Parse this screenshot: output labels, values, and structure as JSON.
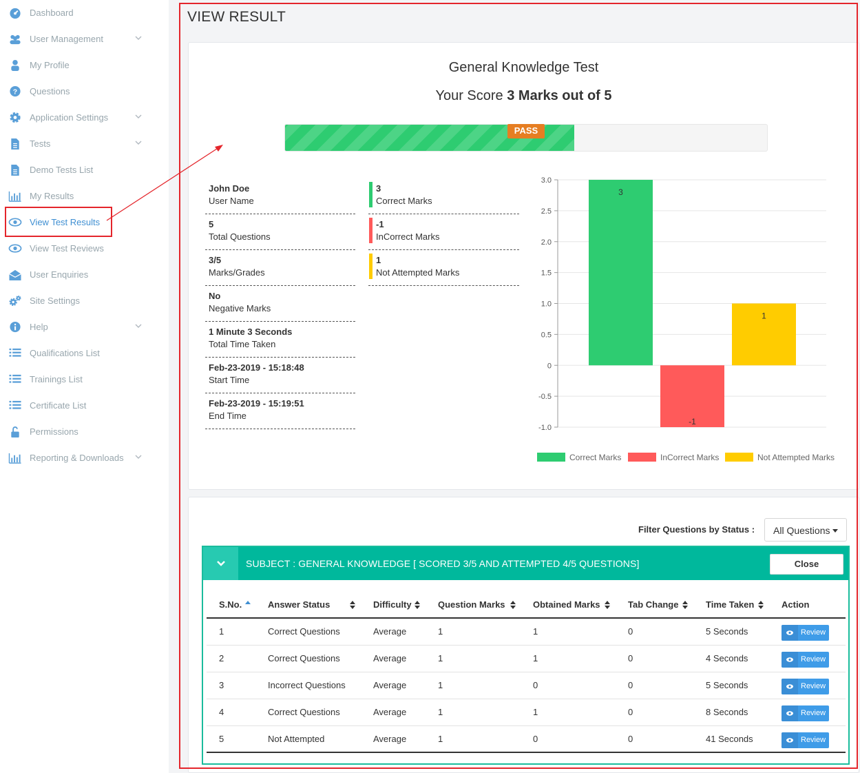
{
  "sidebar": {
    "items": [
      {
        "label": "Dashboard",
        "icon": "dashboard-icon",
        "has_chevron": false
      },
      {
        "label": "User Management",
        "icon": "users-icon",
        "has_chevron": true
      },
      {
        "label": "My Profile",
        "icon": "user-icon",
        "has_chevron": false
      },
      {
        "label": "Questions",
        "icon": "question-circle-icon",
        "has_chevron": false
      },
      {
        "label": "Application Settings",
        "icon": "gear-icon",
        "has_chevron": true
      },
      {
        "label": "Tests",
        "icon": "file-text-icon",
        "has_chevron": true
      },
      {
        "label": "Demo Tests List",
        "icon": "file-text-icon",
        "has_chevron": false
      },
      {
        "label": "My Results",
        "icon": "bar-chart-icon",
        "has_chevron": false
      },
      {
        "label": "View Test Results",
        "icon": "eye-icon",
        "has_chevron": false,
        "active": true
      },
      {
        "label": "View Test Reviews",
        "icon": "eye-icon",
        "has_chevron": false
      },
      {
        "label": "User Enquiries",
        "icon": "envelope-open-icon",
        "has_chevron": false
      },
      {
        "label": "Site Settings",
        "icon": "gears-icon",
        "has_chevron": false
      },
      {
        "label": "Help",
        "icon": "info-circle-icon",
        "has_chevron": true
      },
      {
        "label": "Qualifications List",
        "icon": "list-icon",
        "has_chevron": false
      },
      {
        "label": "Trainings List",
        "icon": "list-icon",
        "has_chevron": false
      },
      {
        "label": "Certificate List",
        "icon": "list-icon",
        "has_chevron": false
      },
      {
        "label": "Permissions",
        "icon": "unlock-icon",
        "has_chevron": false
      },
      {
        "label": "Reporting & Downloads",
        "icon": "bar-chart-icon",
        "has_chevron": true
      }
    ]
  },
  "page": {
    "title": "VIEW RESULT"
  },
  "result": {
    "test_name": "General Knowledge Test",
    "score_prefix": "Your Score",
    "score_bold": "3 Marks out of 5",
    "pass_label": "PASS",
    "progress_fraction": 0.6,
    "info": [
      {
        "value": "John Doe",
        "label": "User Name"
      },
      {
        "value": "5",
        "label": "Total Questions"
      },
      {
        "value": "3/5",
        "label": "Marks/Grades"
      },
      {
        "value": "No",
        "label": "Negative Marks"
      },
      {
        "value": "1 Minute 3 Seconds",
        "label": "Total Time Taken"
      },
      {
        "value": "Feb-23-2019 - 15:18:48",
        "label": "Start Time"
      },
      {
        "value": "Feb-23-2019 - 15:19:51",
        "label": "End Time"
      }
    ],
    "marks": [
      {
        "value": "3",
        "label": "Correct Marks",
        "color": "#2ecc71"
      },
      {
        "value": "-1",
        "label": "InCorrect Marks",
        "color": "#ff5a5a"
      },
      {
        "value": "1",
        "label": "Not Attempted Marks",
        "color": "#ffcc00"
      }
    ]
  },
  "chart_data": {
    "type": "bar",
    "categories": [
      "Correct Marks",
      "InCorrect Marks",
      "Not Attempted Marks"
    ],
    "values": [
      3,
      -1,
      1
    ],
    "data_labels": [
      "3",
      "-1",
      "1"
    ],
    "colors": [
      "#2ecc71",
      "#ff5a5a",
      "#ffcc00"
    ],
    "ylim": [
      -1.0,
      3.0
    ],
    "yticks": [
      "3.0",
      "2.5",
      "2.0",
      "1.5",
      "1.0",
      "0.5",
      "0",
      "-0.5",
      "-1.0"
    ],
    "ytick_values": [
      3.0,
      2.5,
      2.0,
      1.5,
      1.0,
      0.5,
      0,
      -0.5,
      -1.0
    ],
    "grid": true,
    "legend_position": "bottom"
  },
  "filter": {
    "label": "Filter Questions by Status :",
    "selected": "All Questions"
  },
  "subject": {
    "title": "SUBJECT : GENERAL KNOWLEDGE [ SCORED 3/5 AND ATTEMPTED 4/5 QUESTIONS]",
    "close_label": "Close"
  },
  "table": {
    "headers": [
      "S.No.",
      "Answer Status",
      "Difficulty",
      "Question Marks",
      "Obtained Marks",
      "Tab Change",
      "Time Taken",
      "Action"
    ],
    "review_label": "Review",
    "rows": [
      [
        "1",
        "Correct Questions",
        "Average",
        "1",
        "1",
        "0",
        "5 Seconds"
      ],
      [
        "2",
        "Correct Questions",
        "Average",
        "1",
        "1",
        "0",
        "4 Seconds"
      ],
      [
        "3",
        "Incorrect Questions",
        "Average",
        "1",
        "0",
        "0",
        "5 Seconds"
      ],
      [
        "4",
        "Correct Questions",
        "Average",
        "1",
        "1",
        "0",
        "8 Seconds"
      ],
      [
        "5",
        "Not Attempted",
        "Average",
        "1",
        "0",
        "0",
        "41 Seconds"
      ]
    ]
  }
}
